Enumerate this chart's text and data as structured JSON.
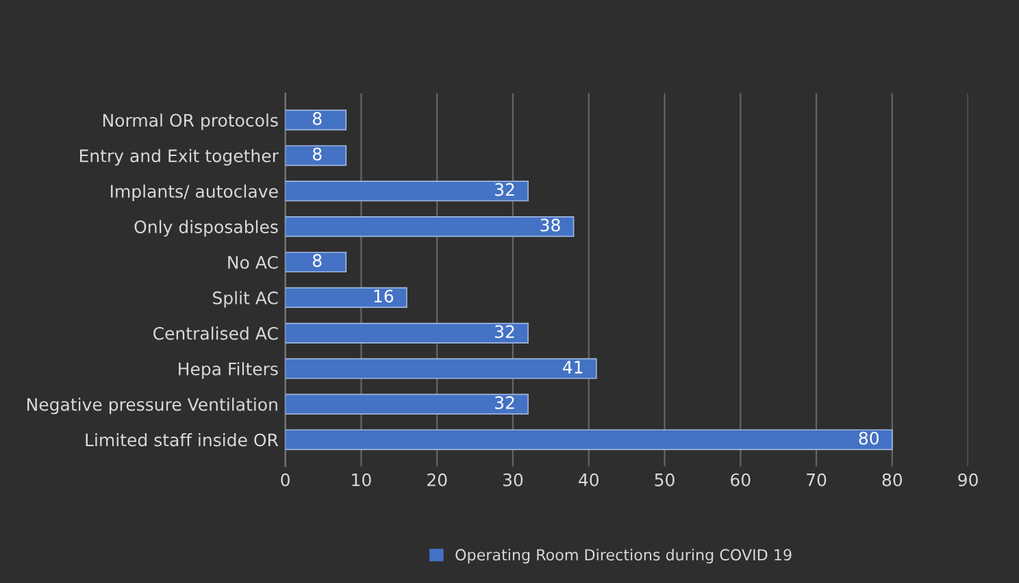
{
  "chart_data": {
    "type": "bar",
    "orientation": "horizontal",
    "categories": [
      "Normal OR protocols",
      "Entry and Exit together",
      "Implants/ autoclave",
      "Only disposables",
      "No AC",
      "Split AC",
      "Centralised AC",
      "Hepa Filters",
      "Negative pressure Ventilation",
      "Limited staff inside OR"
    ],
    "series": [
      {
        "name": "Operating Room Directions during COVID 19",
        "color": "#4472c4",
        "values": [
          8,
          8,
          32,
          38,
          8,
          16,
          32,
          41,
          32,
          80
        ]
      }
    ],
    "xlim": [
      0,
      90
    ],
    "xticks": [
      0,
      10,
      20,
      30,
      40,
      50,
      60,
      70,
      80,
      90
    ],
    "grid": "x",
    "legend": "bottom",
    "data_labels": true
  }
}
